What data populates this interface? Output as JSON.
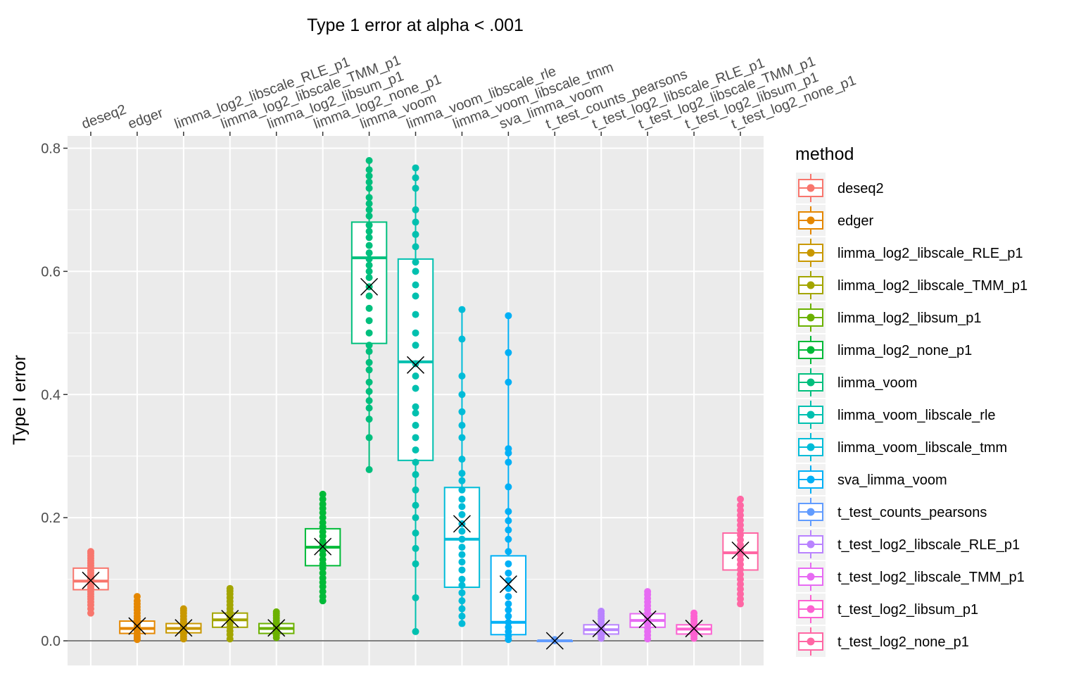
{
  "chart_data": {
    "type": "boxplot",
    "title": "Type 1 error at alpha < .001",
    "xlabel": "",
    "ylabel": "Type I error",
    "ylim": [
      -0.04,
      0.82
    ],
    "y_ticks": [
      "0.0",
      "0.2",
      "0.4",
      "0.6",
      "0.8"
    ],
    "y_tick_values": [
      0.0,
      0.2,
      0.4,
      0.6,
      0.8
    ],
    "x_axis_position": "top",
    "reference_line_y": 0.0,
    "grid": true,
    "legend": {
      "title": "method",
      "position": "right"
    },
    "mean_marker": "cross",
    "categories": [
      "deseq2",
      "edger",
      "limma_log2_libscale_RLE_p1",
      "limma_log2_libscale_TMM_p1",
      "limma_log2_libsum_p1",
      "limma_log2_none_p1",
      "limma_voom",
      "limma_voom_libscale_rle",
      "limma_voom_libscale_tmm",
      "sva_limma_voom",
      "t_test_counts_pearsons",
      "t_test_log2_libscale_RLE_p1",
      "t_test_log2_libscale_TMM_p1",
      "t_test_log2_libsum_p1",
      "t_test_log2_none_p1"
    ],
    "series": [
      {
        "name": "deseq2",
        "color": "#F8766D",
        "min": 0.045,
        "q1": 0.083,
        "median": 0.097,
        "q3": 0.118,
        "max": 0.145,
        "mean": 0.098,
        "points": [
          0.045,
          0.052,
          0.058,
          0.063,
          0.068,
          0.072,
          0.076,
          0.08,
          0.085,
          0.088,
          0.092,
          0.095,
          0.099,
          0.102,
          0.106,
          0.11,
          0.114,
          0.118,
          0.122,
          0.126,
          0.13,
          0.134,
          0.138,
          0.142,
          0.145
        ]
      },
      {
        "name": "edger",
        "color": "#E58700",
        "min": 0.002,
        "q1": 0.012,
        "median": 0.02,
        "q3": 0.032,
        "max": 0.072,
        "mean": 0.024,
        "points": [
          0.002,
          0.005,
          0.008,
          0.012,
          0.016,
          0.02,
          0.024,
          0.028,
          0.032,
          0.036,
          0.04,
          0.045,
          0.05,
          0.055,
          0.06,
          0.065,
          0.072
        ]
      },
      {
        "name": "limma_log2_libscale_RLE_p1",
        "color": "#C99800",
        "min": 0.003,
        "q1": 0.013,
        "median": 0.02,
        "q3": 0.028,
        "max": 0.052,
        "mean": 0.021,
        "points": [
          0.003,
          0.007,
          0.011,
          0.015,
          0.019,
          0.023,
          0.027,
          0.031,
          0.035,
          0.04,
          0.045,
          0.049,
          0.052
        ]
      },
      {
        "name": "limma_log2_libscale_TMM_p1",
        "color": "#A3A500",
        "min": 0.003,
        "q1": 0.022,
        "median": 0.034,
        "q3": 0.045,
        "max": 0.085,
        "mean": 0.036,
        "points": [
          0.003,
          0.01,
          0.016,
          0.022,
          0.028,
          0.034,
          0.04,
          0.046,
          0.052,
          0.058,
          0.064,
          0.07,
          0.076,
          0.081,
          0.085
        ]
      },
      {
        "name": "limma_log2_libsum_p1",
        "color": "#6BB100",
        "min": 0.005,
        "q1": 0.012,
        "median": 0.02,
        "q3": 0.028,
        "max": 0.047,
        "mean": 0.021,
        "points": [
          0.005,
          0.009,
          0.013,
          0.017,
          0.021,
          0.025,
          0.029,
          0.033,
          0.037,
          0.041,
          0.044,
          0.047
        ]
      },
      {
        "name": "limma_log2_none_p1",
        "color": "#00BA38",
        "min": 0.065,
        "q1": 0.122,
        "median": 0.152,
        "q3": 0.182,
        "max": 0.238,
        "mean": 0.153,
        "points": [
          0.065,
          0.072,
          0.08,
          0.088,
          0.095,
          0.102,
          0.11,
          0.118,
          0.125,
          0.132,
          0.14,
          0.147,
          0.155,
          0.162,
          0.17,
          0.177,
          0.185,
          0.192,
          0.2,
          0.208,
          0.215,
          0.222,
          0.23,
          0.238
        ]
      },
      {
        "name": "limma_voom",
        "color": "#00BF7D",
        "min": 0.278,
        "q1": 0.483,
        "median": 0.622,
        "q3": 0.68,
        "max": 0.78,
        "mean": 0.575,
        "points": [
          0.278,
          0.33,
          0.36,
          0.378,
          0.39,
          0.405,
          0.42,
          0.44,
          0.452,
          0.47,
          0.48,
          0.5,
          0.52,
          0.54,
          0.56,
          0.575,
          0.59,
          0.6,
          0.61,
          0.62,
          0.63,
          0.642,
          0.655,
          0.665,
          0.675,
          0.69,
          0.7,
          0.71,
          0.72,
          0.735,
          0.745,
          0.755,
          0.765,
          0.78
        ]
      },
      {
        "name": "limma_voom_libscale_rle",
        "color": "#00C0AF",
        "min": 0.015,
        "q1": 0.293,
        "median": 0.453,
        "q3": 0.62,
        "max": 0.768,
        "mean": 0.448,
        "points": [
          0.015,
          0.07,
          0.125,
          0.15,
          0.175,
          0.2,
          0.22,
          0.245,
          0.27,
          0.29,
          0.31,
          0.33,
          0.35,
          0.37,
          0.38,
          0.41,
          0.43,
          0.45,
          0.48,
          0.5,
          0.53,
          0.56,
          0.578,
          0.6,
          0.615,
          0.64,
          0.66,
          0.68,
          0.7,
          0.735,
          0.752,
          0.768
        ]
      },
      {
        "name": "limma_voom_libscale_tmm",
        "color": "#00BCD8",
        "min": 0.028,
        "q1": 0.087,
        "median": 0.165,
        "q3": 0.249,
        "max": 0.538,
        "mean": 0.19,
        "points": [
          0.028,
          0.04,
          0.052,
          0.065,
          0.078,
          0.09,
          0.1,
          0.115,
          0.128,
          0.14,
          0.152,
          0.165,
          0.178,
          0.19,
          0.205,
          0.218,
          0.23,
          0.245,
          0.26,
          0.272,
          0.295,
          0.33,
          0.35,
          0.372,
          0.4,
          0.43,
          0.49,
          0.538
        ]
      },
      {
        "name": "sva_limma_voom",
        "color": "#00B0F6",
        "min": 0.002,
        "q1": 0.01,
        "median": 0.03,
        "q3": 0.138,
        "max": 0.528,
        "mean": 0.092,
        "points": [
          0.002,
          0.008,
          0.015,
          0.022,
          0.03,
          0.04,
          0.05,
          0.06,
          0.072,
          0.085,
          0.098,
          0.11,
          0.125,
          0.145,
          0.165,
          0.18,
          0.195,
          0.21,
          0.25,
          0.29,
          0.305,
          0.312,
          0.42,
          0.468,
          0.528
        ]
      },
      {
        "name": "t_test_counts_pearsons",
        "color": "#619CFF",
        "min": 0.0,
        "q1": 0.0,
        "median": 0.0,
        "q3": 0.0,
        "max": 0.002,
        "mean": 0.0,
        "points": [
          0.0,
          0.001,
          0.002
        ]
      },
      {
        "name": "t_test_log2_libscale_RLE_p1",
        "color": "#B983FF",
        "min": 0.004,
        "q1": 0.011,
        "median": 0.018,
        "q3": 0.026,
        "max": 0.048,
        "mean": 0.02,
        "points": [
          0.004,
          0.008,
          0.012,
          0.016,
          0.02,
          0.024,
          0.028,
          0.032,
          0.036,
          0.04,
          0.044,
          0.048
        ]
      },
      {
        "name": "t_test_log2_libscale_TMM_p1",
        "color": "#E76BF3",
        "min": 0.003,
        "q1": 0.022,
        "median": 0.033,
        "q3": 0.044,
        "max": 0.08,
        "mean": 0.035,
        "points": [
          0.003,
          0.009,
          0.015,
          0.021,
          0.027,
          0.033,
          0.039,
          0.045,
          0.051,
          0.057,
          0.063,
          0.069,
          0.075,
          0.08
        ]
      },
      {
        "name": "t_test_log2_libsum_p1",
        "color": "#FD61D1",
        "min": 0.004,
        "q1": 0.011,
        "median": 0.019,
        "q3": 0.026,
        "max": 0.045,
        "mean": 0.02,
        "points": [
          0.004,
          0.008,
          0.012,
          0.016,
          0.02,
          0.024,
          0.028,
          0.032,
          0.036,
          0.04,
          0.045
        ]
      },
      {
        "name": "t_test_log2_none_p1",
        "color": "#FF67A4",
        "min": 0.06,
        "q1": 0.115,
        "median": 0.143,
        "q3": 0.175,
        "max": 0.23,
        "mean": 0.147,
        "points": [
          0.06,
          0.068,
          0.076,
          0.084,
          0.092,
          0.1,
          0.108,
          0.116,
          0.124,
          0.132,
          0.14,
          0.148,
          0.156,
          0.164,
          0.172,
          0.18,
          0.188,
          0.196,
          0.204,
          0.212,
          0.22,
          0.23
        ]
      }
    ]
  }
}
